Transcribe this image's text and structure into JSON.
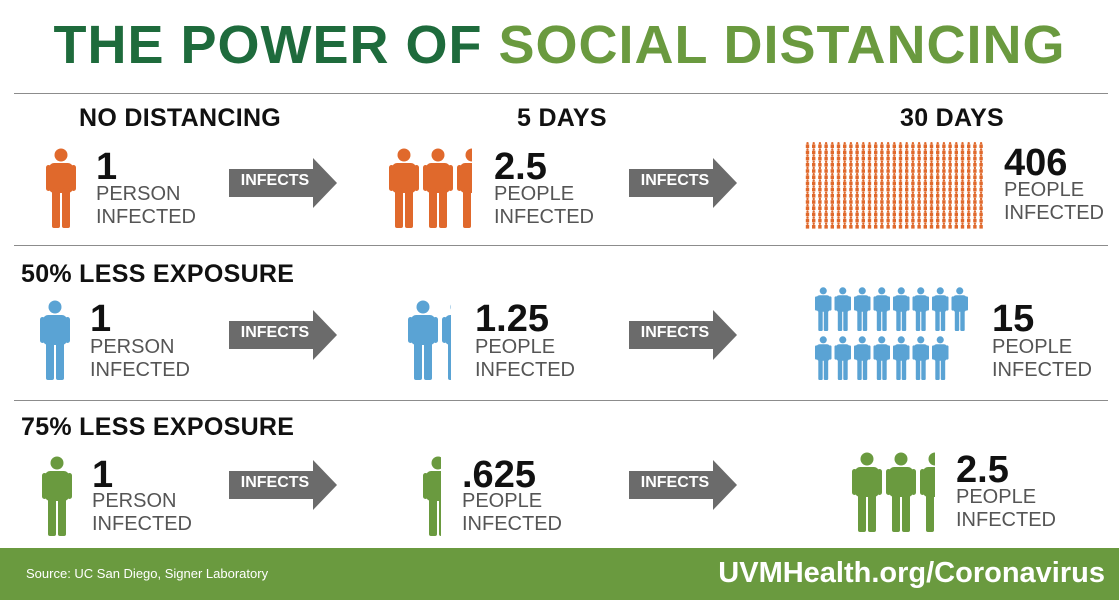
{
  "title": {
    "part1": "THE POWER OF",
    "part2": "SOCIAL DISTANCING"
  },
  "colors": {
    "dark_green": "#1e6b3c",
    "green": "#6a9a3f",
    "orange": "#e0692c",
    "blue": "#5aa3d4",
    "arrow_gray": "#6b6b6b"
  },
  "columns": {
    "col1": "NO DISTANCING",
    "col2": "5 DAYS",
    "col3": "30 DAYS"
  },
  "arrow_label": "INFECTS",
  "rows": [
    {
      "heading": "",
      "color": "#e0692c",
      "start": {
        "number": "1",
        "line1": "PERSON",
        "line2": "INFECTED"
      },
      "mid": {
        "number": "2.5",
        "line1": "PEOPLE",
        "line2": "INFECTED"
      },
      "end": {
        "number": "406",
        "line1": "PEOPLE",
        "line2": "INFECTED"
      }
    },
    {
      "heading": "50% LESS EXPOSURE",
      "color": "#5aa3d4",
      "start": {
        "number": "1",
        "line1": "PERSON",
        "line2": "INFECTED"
      },
      "mid": {
        "number": "1.25",
        "line1": "PEOPLE",
        "line2": "INFECTED"
      },
      "end": {
        "number": "15",
        "line1": "PEOPLE",
        "line2": "INFECTED"
      }
    },
    {
      "heading": "75% LESS EXPOSURE",
      "color": "#6a9a3f",
      "start": {
        "number": "1",
        "line1": "PERSON",
        "line2": "INFECTED"
      },
      "mid": {
        "number": ".625",
        "line1": "PEOPLE",
        "line2": "INFECTED"
      },
      "end": {
        "number": "2.5",
        "line1": "PEOPLE",
        "line2": "INFECTED"
      }
    }
  ],
  "footer": {
    "source": "Source: UC San Diego, Signer Laboratory",
    "url": "UVMHealth.org/Coronavirus"
  }
}
